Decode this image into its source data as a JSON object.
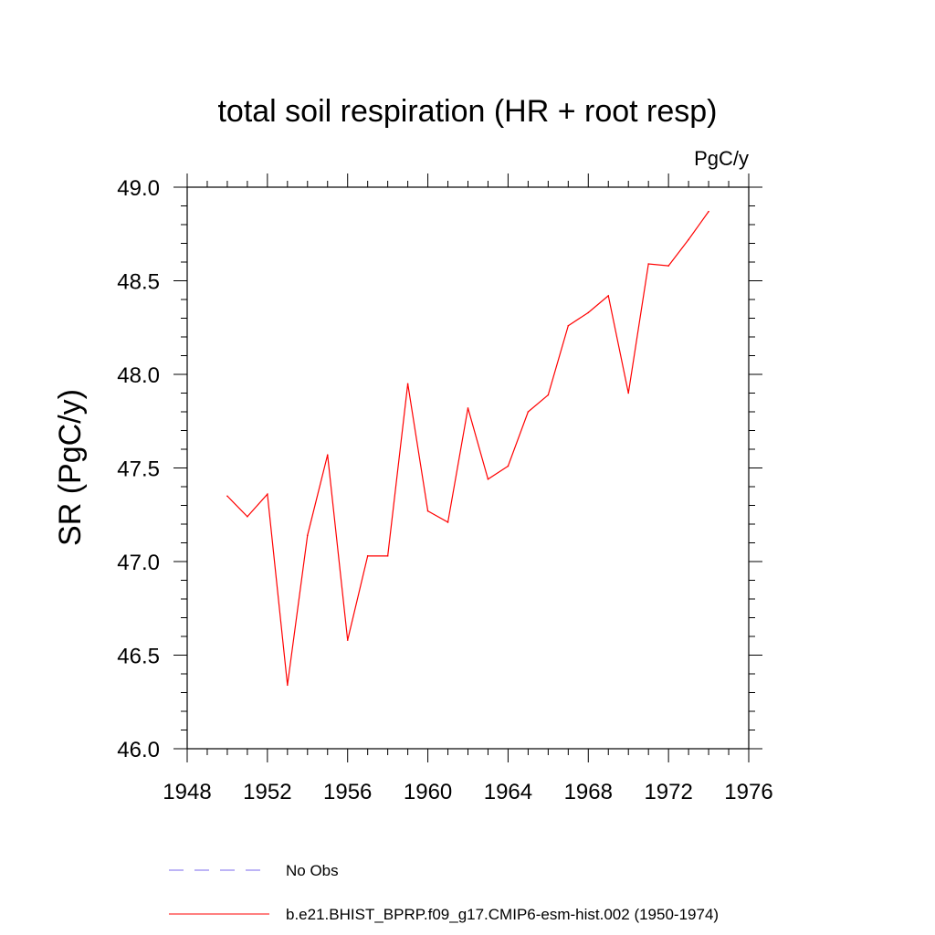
{
  "chart_data": {
    "type": "line",
    "title": "total soil respiration (HR + root resp)",
    "units_label": "PgC/y",
    "xlabel": "",
    "ylabel": "SR  (PgC/y)",
    "xlim": [
      1948,
      1976
    ],
    "ylim": [
      46.0,
      49.0
    ],
    "x_ticks": [
      1948,
      1952,
      1956,
      1960,
      1964,
      1968,
      1972,
      1976
    ],
    "x_tick_labels": [
      "1948",
      "1952",
      "1956",
      "1960",
      "1964",
      "1968",
      "1972",
      "1976"
    ],
    "y_ticks": [
      46.0,
      46.5,
      47.0,
      47.5,
      48.0,
      48.5,
      49.0
    ],
    "y_tick_labels": [
      "46.0",
      "46.5",
      "47.0",
      "47.5",
      "48.0",
      "48.5",
      "49.0"
    ],
    "series": [
      {
        "name": "b.e21.BHIST_BPRP.f09_g17.CMIP6-esm-hist.002 (1950-1974)",
        "color": "#ff0000",
        "style": "solid",
        "x": [
          1950,
          1951,
          1952,
          1953,
          1954,
          1955,
          1956,
          1957,
          1958,
          1959,
          1960,
          1961,
          1962,
          1963,
          1964,
          1965,
          1966,
          1967,
          1968,
          1969,
          1970,
          1971,
          1972,
          1973,
          1974
        ],
        "values": [
          47.35,
          47.24,
          47.36,
          46.34,
          47.14,
          47.57,
          46.58,
          47.03,
          47.03,
          47.95,
          47.27,
          47.21,
          47.82,
          47.44,
          47.51,
          47.8,
          47.89,
          48.26,
          48.33,
          48.42,
          47.9,
          48.59,
          48.58,
          48.72,
          48.87
        ]
      }
    ],
    "legend": [
      {
        "label": "No Obs",
        "color": "#7b68ee",
        "style": "dashed"
      },
      {
        "label": "b.e21.BHIST_BPRP.f09_g17.CMIP6-esm-hist.002 (1950-1974)",
        "color": "#ff0000",
        "style": "solid"
      }
    ]
  }
}
